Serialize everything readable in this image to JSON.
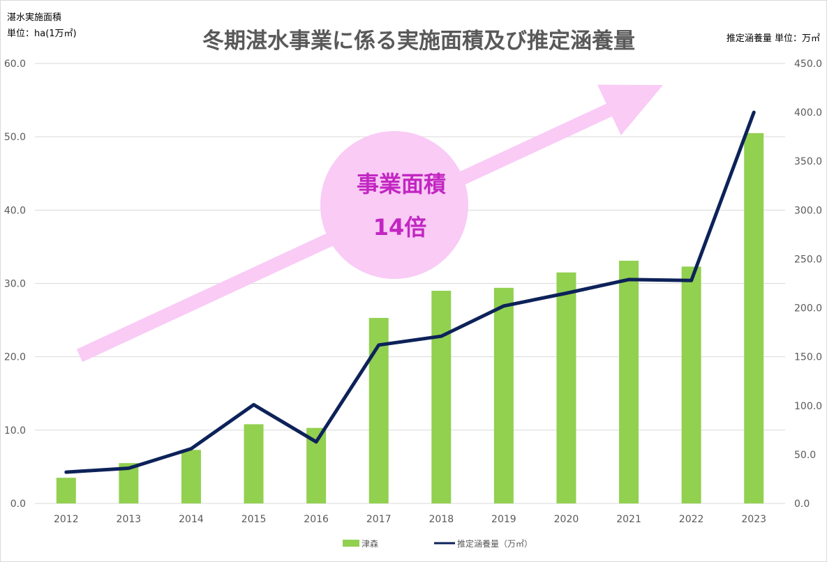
{
  "chart_data": {
    "type": "bar",
    "title": "冬期湛水事業に係る実施面積及び推定涵養量",
    "y_left_label_line1": "湛水実施面積",
    "y_left_label_line2": "単位：ha(1万㎡)",
    "y_right_label": "推定涵養量  単位：万㎡",
    "categories": [
      "2012",
      "2013",
      "2014",
      "2015",
      "2016",
      "2017",
      "2018",
      "2019",
      "2020",
      "2021",
      "2022",
      "2023"
    ],
    "series": [
      {
        "name": "津森",
        "kind": "bar",
        "axis": "left",
        "values": [
          3.5,
          5.5,
          7.3,
          10.8,
          10.3,
          25.3,
          29.0,
          29.4,
          31.5,
          33.1,
          32.3,
          50.5
        ]
      },
      {
        "name": "推定涵養量（万㎡）",
        "kind": "line",
        "axis": "right",
        "values": [
          32,
          36,
          56,
          101,
          63,
          162,
          171,
          202,
          215,
          229,
          228,
          400
        ]
      }
    ],
    "y_left": {
      "min": 0,
      "max": 60,
      "step": 10,
      "ticks": [
        "0.0",
        "10.0",
        "20.0",
        "30.0",
        "40.0",
        "50.0",
        "60.0"
      ]
    },
    "y_right": {
      "min": 0,
      "max": 450,
      "step": 50,
      "ticks": [
        "0.0",
        "50.0",
        "100.0",
        "150.0",
        "200.0",
        "250.0",
        "300.0",
        "350.0",
        "400.0",
        "450.0"
      ]
    },
    "grid": true,
    "legend_position": "bottom",
    "annotation": {
      "line1": "事業面積",
      "line2": "14倍"
    },
    "colors": {
      "bar": "#92d050",
      "line": "#0d2259",
      "grid": "#d9d9d9",
      "arrow": "#f9cbf5",
      "annotation_text": "#c226c2",
      "title": "#595959"
    }
  }
}
